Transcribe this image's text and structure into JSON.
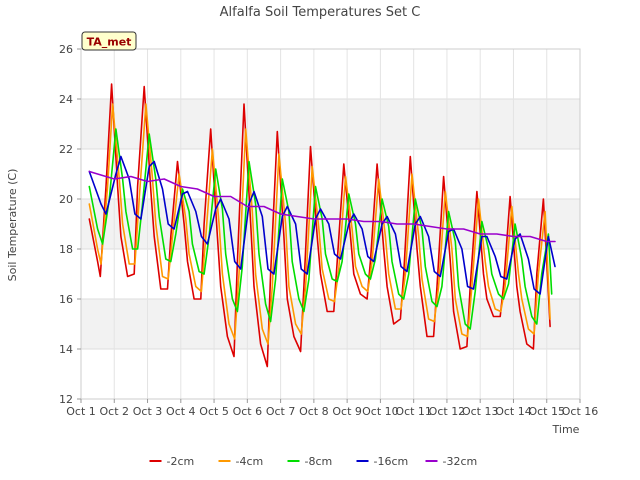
{
  "chart_data": {
    "type": "line",
    "title": "Alfalfa Soil Temperatures Set C",
    "xlabel": "Time",
    "ylabel": "Soil Temperature (C)",
    "badge": "TA_met",
    "xlim": [
      1,
      16
    ],
    "ylim": [
      12,
      26
    ],
    "x_ticks": [
      {
        "value": 1,
        "label": "Oct 1"
      },
      {
        "value": 2,
        "label": "Oct 2"
      },
      {
        "value": 3,
        "label": "Oct 3"
      },
      {
        "value": 4,
        "label": "Oct 4"
      },
      {
        "value": 5,
        "label": "Oct 5"
      },
      {
        "value": 6,
        "label": "Oct 6"
      },
      {
        "value": 7,
        "label": "Oct 7"
      },
      {
        "value": 8,
        "label": "Oct 8"
      },
      {
        "value": 9,
        "label": "Oct 9"
      },
      {
        "value": 10,
        "label": "Oct 10"
      },
      {
        "value": 11,
        "label": "Oct 11"
      },
      {
        "value": 12,
        "label": "Oct 12"
      },
      {
        "value": 13,
        "label": "Oct 13"
      },
      {
        "value": 14,
        "label": "Oct 14"
      },
      {
        "value": 15,
        "label": "Oct 15"
      },
      {
        "value": 16,
        "label": "Oct 16"
      }
    ],
    "y_ticks": [
      12,
      14,
      16,
      18,
      20,
      22,
      24,
      26
    ],
    "grid": true,
    "legend_position": "bottom",
    "series": [
      {
        "name": "-2cm",
        "color": "#dd0000",
        "x": [
          1.25,
          1.5,
          1.58,
          1.75,
          1.92,
          2.1,
          2.2,
          2.4,
          2.6,
          2.7,
          2.9,
          3.1,
          3.2,
          3.4,
          3.6,
          3.7,
          3.9,
          4.1,
          4.2,
          4.4,
          4.6,
          4.7,
          4.9,
          5.1,
          5.2,
          5.4,
          5.6,
          5.7,
          5.9,
          6.1,
          6.2,
          6.4,
          6.6,
          6.7,
          6.9,
          7.1,
          7.2,
          7.4,
          7.6,
          7.7,
          7.9,
          8.1,
          8.2,
          8.4,
          8.6,
          8.7,
          8.9,
          9.1,
          9.2,
          9.4,
          9.6,
          9.7,
          9.9,
          10.1,
          10.2,
          10.4,
          10.6,
          10.7,
          10.9,
          11.1,
          11.2,
          11.4,
          11.6,
          11.7,
          11.9,
          12.1,
          12.2,
          12.4,
          12.6,
          12.7,
          12.9,
          13.1,
          13.2,
          13.4,
          13.6,
          13.7,
          13.9,
          14.1,
          14.2,
          14.4,
          14.6,
          14.7,
          14.9,
          15.1
        ],
        "y": [
          19.2,
          17.5,
          16.9,
          20.5,
          24.6,
          20.5,
          18.5,
          16.9,
          17.0,
          20.5,
          24.5,
          20.3,
          18.5,
          16.4,
          16.4,
          18.5,
          21.5,
          19.0,
          17.5,
          16.0,
          16.0,
          19.0,
          22.8,
          18.5,
          16.5,
          14.5,
          13.7,
          17.5,
          23.8,
          19.0,
          16.5,
          14.2,
          13.3,
          17.0,
          22.7,
          18.5,
          16.0,
          14.5,
          13.9,
          16.5,
          22.1,
          18.5,
          17.0,
          15.5,
          15.5,
          17.5,
          21.4,
          18.5,
          17.0,
          16.2,
          16.0,
          17.5,
          21.4,
          18.0,
          16.5,
          15.0,
          15.2,
          17.0,
          21.7,
          18.0,
          16.5,
          14.5,
          14.5,
          16.5,
          20.9,
          17.5,
          15.5,
          14.0,
          14.1,
          16.5,
          20.3,
          17.0,
          16.0,
          15.3,
          15.3,
          16.5,
          20.1,
          16.5,
          15.5,
          14.2,
          14.0,
          17.0,
          20.0,
          14.9
        ]
      },
      {
        "name": "-4cm",
        "color": "#ff9900",
        "x": [
          1.25,
          1.5,
          1.6,
          1.8,
          1.95,
          2.15,
          2.25,
          2.45,
          2.62,
          2.75,
          2.95,
          3.15,
          3.25,
          3.45,
          3.62,
          3.75,
          3.95,
          4.15,
          4.25,
          4.45,
          4.62,
          4.75,
          4.95,
          5.15,
          5.25,
          5.45,
          5.62,
          5.75,
          5.95,
          6.15,
          6.25,
          6.45,
          6.62,
          6.75,
          6.95,
          7.15,
          7.25,
          7.45,
          7.62,
          7.75,
          7.95,
          8.15,
          8.25,
          8.45,
          8.62,
          8.75,
          8.95,
          9.15,
          9.25,
          9.45,
          9.62,
          9.75,
          9.95,
          10.15,
          10.25,
          10.45,
          10.62,
          10.75,
          10.95,
          11.15,
          11.25,
          11.45,
          11.62,
          11.75,
          11.95,
          12.15,
          12.25,
          12.45,
          12.62,
          12.75,
          12.95,
          13.15,
          13.25,
          13.45,
          13.62,
          13.75,
          13.95,
          14.15,
          14.25,
          14.45,
          14.62,
          14.75,
          14.95,
          15.1
        ],
        "y": [
          19.8,
          18.0,
          17.4,
          20.5,
          23.8,
          20.8,
          19.0,
          17.4,
          17.4,
          20.0,
          23.8,
          20.8,
          19.0,
          16.9,
          16.8,
          18.5,
          21.0,
          19.2,
          17.8,
          16.5,
          16.3,
          18.5,
          22.0,
          19.0,
          17.0,
          15.0,
          14.4,
          17.0,
          22.8,
          19.5,
          17.0,
          14.8,
          14.2,
          16.5,
          21.8,
          19.0,
          16.5,
          15.0,
          14.6,
          16.5,
          21.3,
          18.8,
          17.2,
          16.0,
          15.9,
          17.2,
          20.9,
          18.8,
          17.3,
          16.5,
          16.3,
          17.5,
          20.8,
          18.5,
          17.0,
          15.6,
          15.6,
          17.0,
          21.0,
          18.5,
          16.8,
          15.2,
          15.1,
          16.5,
          20.3,
          18.0,
          16.0,
          14.6,
          14.5,
          16.5,
          20.0,
          17.5,
          16.5,
          15.6,
          15.5,
          16.5,
          19.7,
          17.0,
          16.0,
          14.8,
          14.6,
          17.0,
          19.5,
          15.2
        ]
      },
      {
        "name": "-8cm",
        "color": "#00dd00",
        "x": [
          1.25,
          1.5,
          1.65,
          1.85,
          2.05,
          2.25,
          2.35,
          2.55,
          2.7,
          2.85,
          3.05,
          3.25,
          3.35,
          3.55,
          3.7,
          3.85,
          4.05,
          4.25,
          4.35,
          4.55,
          4.7,
          4.85,
          5.05,
          5.25,
          5.35,
          5.55,
          5.7,
          5.85,
          6.05,
          6.25,
          6.35,
          6.55,
          6.7,
          6.85,
          7.05,
          7.25,
          7.35,
          7.55,
          7.7,
          7.85,
          8.05,
          8.25,
          8.35,
          8.55,
          8.7,
          8.85,
          9.05,
          9.25,
          9.35,
          9.55,
          9.7,
          9.85,
          10.05,
          10.25,
          10.35,
          10.55,
          10.7,
          10.85,
          11.05,
          11.25,
          11.35,
          11.55,
          11.7,
          11.85,
          12.05,
          12.25,
          12.35,
          12.55,
          12.7,
          12.85,
          13.05,
          13.25,
          13.35,
          13.55,
          13.7,
          13.85,
          14.05,
          14.25,
          14.35,
          14.55,
          14.7,
          14.85,
          15.05,
          15.15
        ],
        "y": [
          20.5,
          18.8,
          18.2,
          20.0,
          22.8,
          20.8,
          19.5,
          18.0,
          18.0,
          19.8,
          22.6,
          20.8,
          19.3,
          17.6,
          17.5,
          18.6,
          20.4,
          19.5,
          18.2,
          17.1,
          17.0,
          18.5,
          21.2,
          19.6,
          17.8,
          16.0,
          15.5,
          17.3,
          21.5,
          19.8,
          17.8,
          15.8,
          15.1,
          16.8,
          20.8,
          19.5,
          17.5,
          16.0,
          15.5,
          16.8,
          20.5,
          19.2,
          17.8,
          16.8,
          16.7,
          17.5,
          20.2,
          19.0,
          17.8,
          17.0,
          16.8,
          17.6,
          20.0,
          18.9,
          17.5,
          16.2,
          16.0,
          17.0,
          20.0,
          18.8,
          17.3,
          15.9,
          15.7,
          16.5,
          19.5,
          18.3,
          16.5,
          15.0,
          14.8,
          16.3,
          19.1,
          18.0,
          17.0,
          16.2,
          16.0,
          16.6,
          19.0,
          17.6,
          16.5,
          15.3,
          15.0,
          17.0,
          18.6,
          16.2
        ]
      },
      {
        "name": "-16cm",
        "color": "#0000cc",
        "x": [
          1.25,
          1.6,
          1.75,
          2.05,
          2.2,
          2.45,
          2.62,
          2.8,
          3.05,
          3.2,
          3.45,
          3.62,
          3.8,
          4.05,
          4.2,
          4.45,
          4.62,
          4.8,
          5.05,
          5.2,
          5.45,
          5.62,
          5.8,
          6.05,
          6.2,
          6.45,
          6.62,
          6.8,
          7.05,
          7.2,
          7.45,
          7.62,
          7.8,
          8.05,
          8.2,
          8.45,
          8.62,
          8.8,
          9.05,
          9.2,
          9.45,
          9.62,
          9.8,
          10.05,
          10.2,
          10.45,
          10.62,
          10.8,
          11.05,
          11.2,
          11.45,
          11.62,
          11.8,
          12.05,
          12.2,
          12.45,
          12.62,
          12.8,
          13.05,
          13.2,
          13.45,
          13.62,
          13.8,
          14.05,
          14.2,
          14.45,
          14.62,
          14.8,
          15.05,
          15.25
        ],
        "y": [
          21.1,
          19.8,
          19.4,
          21.0,
          21.7,
          20.8,
          19.4,
          19.2,
          21.3,
          21.5,
          20.4,
          19.0,
          18.8,
          20.2,
          20.3,
          19.5,
          18.5,
          18.2,
          19.6,
          20.0,
          19.2,
          17.5,
          17.2,
          19.8,
          20.3,
          19.3,
          17.2,
          17.0,
          19.3,
          19.7,
          19.0,
          17.2,
          17.0,
          19.2,
          19.6,
          19.0,
          17.8,
          17.6,
          19.0,
          19.4,
          18.8,
          17.7,
          17.5,
          19.0,
          19.3,
          18.6,
          17.3,
          17.1,
          19.0,
          19.3,
          18.5,
          17.1,
          16.9,
          18.7,
          18.8,
          18.0,
          16.5,
          16.4,
          18.5,
          18.5,
          17.7,
          16.9,
          16.8,
          18.4,
          18.6,
          17.6,
          16.4,
          16.2,
          18.5,
          17.3
        ]
      },
      {
        "name": "-32cm",
        "color": "#9900cc",
        "x": [
          1.25,
          1.5,
          2.0,
          2.5,
          3.0,
          3.5,
          4.0,
          4.5,
          5.0,
          5.5,
          6.0,
          6.5,
          7.0,
          7.5,
          8.0,
          8.5,
          9.0,
          9.5,
          10.0,
          10.5,
          11.0,
          11.5,
          12.0,
          12.5,
          13.0,
          13.5,
          14.0,
          14.5,
          15.0,
          15.25
        ],
        "y": [
          21.1,
          21.0,
          20.8,
          20.9,
          20.7,
          20.8,
          20.5,
          20.4,
          20.1,
          20.1,
          19.7,
          19.7,
          19.4,
          19.3,
          19.2,
          19.2,
          19.2,
          19.1,
          19.1,
          19.0,
          19.0,
          18.9,
          18.8,
          18.8,
          18.6,
          18.6,
          18.5,
          18.5,
          18.3,
          18.3
        ]
      }
    ]
  }
}
